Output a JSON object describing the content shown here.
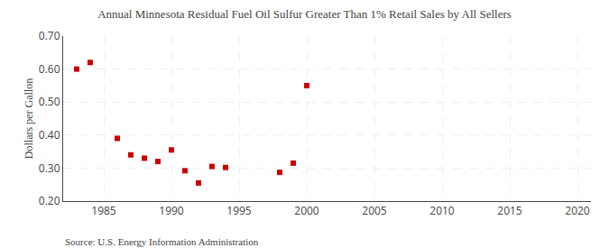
{
  "chart_data": {
    "type": "scatter",
    "title": "Annual Minnesota Residual Fuel Oil Sulfur Greater Than 1% Retail Sales by All Sellers",
    "ylabel": "Dollars per Gallon",
    "annotations": [
      "Source: U.S. Energy Information Administration"
    ],
    "x": [
      1983,
      1984,
      1986,
      1987,
      1988,
      1989,
      1990,
      1991,
      1992,
      1993,
      1994,
      1998,
      1999,
      2000
    ],
    "values": [
      0.6,
      0.62,
      0.39,
      0.34,
      0.33,
      0.32,
      0.355,
      0.292,
      0.255,
      0.305,
      0.302,
      0.287,
      0.315,
      0.55
    ],
    "color": "#cc0000",
    "marker": "square",
    "xlim": [
      1982,
      2021
    ],
    "ylim": [
      0.2,
      0.7
    ],
    "xticks": [
      1985,
      1990,
      1995,
      2000,
      2005,
      2010,
      2015,
      2020
    ],
    "yticks": [
      {
        "value": 0.2,
        "label": "0.20"
      },
      {
        "value": 0.3,
        "label": "0.30"
      },
      {
        "value": 0.4,
        "label": "0.40"
      },
      {
        "value": 0.5,
        "label": "0.50"
      },
      {
        "value": 0.6,
        "label": "0.60"
      },
      {
        "value": 0.7,
        "label": "0.70"
      }
    ],
    "grid": true
  }
}
